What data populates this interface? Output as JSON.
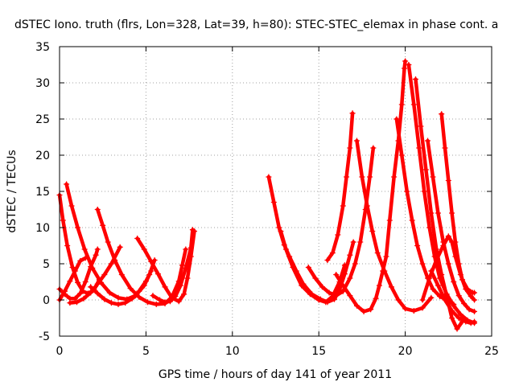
{
  "chart_data": {
    "type": "scatter",
    "title": "dSTEC Iono. truth (flrs, Lon=328, Lat=39, h=80): STEC-STEC_elemax in phase cont. a",
    "xlabel": "GPS time / hours of day 141 of year 2011",
    "ylabel": "dSTEC  / TECUs",
    "xlim": [
      0,
      25
    ],
    "ylim": [
      -5,
      35
    ],
    "xticks": [
      0,
      5,
      10,
      15,
      20,
      25
    ],
    "yticks": [
      -5,
      0,
      5,
      10,
      15,
      20,
      25,
      30,
      35
    ],
    "grid": true,
    "legend": "none",
    "marker": "plus",
    "color": "#ff0000",
    "series": [
      {
        "points": [
          [
            0.0,
            14.5
          ],
          [
            0.2,
            11.0
          ],
          [
            0.45,
            7.5
          ],
          [
            0.75,
            4.5
          ],
          [
            1.05,
            2.4
          ],
          [
            1.35,
            1.2
          ],
          [
            1.65,
            0.9
          ],
          [
            2.0,
            1.4
          ],
          [
            2.3,
            2.8
          ]
        ]
      },
      {
        "points": [
          [
            0.0,
            1.5
          ],
          [
            0.3,
            0.8
          ],
          [
            0.6,
            0.2
          ],
          [
            0.9,
            0.2
          ],
          [
            1.2,
            0.9
          ],
          [
            1.5,
            2.5
          ],
          [
            1.8,
            4.6
          ],
          [
            2.1,
            6.2
          ],
          [
            2.2,
            7.0
          ]
        ]
      },
      {
        "points": [
          [
            0.0,
            0.0
          ],
          [
            0.3,
            1.2
          ],
          [
            0.6,
            2.6
          ],
          [
            0.9,
            4.0
          ],
          [
            1.2,
            5.4
          ],
          [
            1.5,
            5.8
          ]
        ]
      },
      {
        "points": [
          [
            0.4,
            16.0
          ],
          [
            0.7,
            13.0
          ],
          [
            1.05,
            10.0
          ],
          [
            1.45,
            7.0
          ],
          [
            1.9,
            4.4
          ],
          [
            2.4,
            2.4
          ],
          [
            2.9,
            1.0
          ],
          [
            3.4,
            0.3
          ],
          [
            3.9,
            0.1
          ],
          [
            4.4,
            0.6
          ],
          [
            4.9,
            2.0
          ],
          [
            5.2,
            3.5
          ],
          [
            5.5,
            5.5
          ]
        ]
      },
      {
        "points": [
          [
            0.6,
            -0.4
          ],
          [
            1.0,
            -0.3
          ],
          [
            1.4,
            0.2
          ],
          [
            1.8,
            1.0
          ],
          [
            2.2,
            2.2
          ],
          [
            2.6,
            3.5
          ],
          [
            3.0,
            5.0
          ],
          [
            3.5,
            7.3
          ]
        ]
      },
      {
        "points": [
          [
            2.2,
            12.5
          ],
          [
            2.5,
            10.3
          ],
          [
            2.8,
            8.0
          ],
          [
            3.2,
            5.5
          ],
          [
            3.6,
            3.5
          ],
          [
            4.1,
            1.6
          ],
          [
            4.6,
            0.4
          ],
          [
            5.1,
            -0.3
          ],
          [
            5.6,
            -0.6
          ],
          [
            6.1,
            -0.5
          ],
          [
            6.5,
            0.4
          ],
          [
            6.9,
            2.6
          ],
          [
            7.1,
            4.8
          ],
          [
            7.3,
            7.0
          ]
        ]
      },
      {
        "points": [
          [
            1.8,
            1.8
          ],
          [
            2.2,
            0.9
          ],
          [
            2.6,
            0.1
          ],
          [
            3.0,
            -0.4
          ],
          [
            3.4,
            -0.6
          ],
          [
            3.8,
            -0.4
          ],
          [
            4.2,
            0.2
          ],
          [
            4.6,
            1.2
          ],
          [
            5.0,
            2.6
          ],
          [
            5.3,
            4.0
          ]
        ]
      },
      {
        "points": [
          [
            4.5,
            8.5
          ],
          [
            4.9,
            7.0
          ],
          [
            5.3,
            5.3
          ],
          [
            5.7,
            3.6
          ],
          [
            6.1,
            1.8
          ],
          [
            6.5,
            0.3
          ],
          [
            6.9,
            -0.2
          ],
          [
            7.2,
            0.8
          ],
          [
            7.4,
            3.0
          ],
          [
            7.6,
            6.0
          ],
          [
            7.8,
            9.5
          ]
        ]
      },
      {
        "points": [
          [
            5.4,
            0.6
          ],
          [
            5.8,
            0.0
          ],
          [
            6.1,
            -0.3
          ],
          [
            6.4,
            -0.2
          ],
          [
            6.7,
            0.5
          ],
          [
            7.0,
            2.0
          ],
          [
            7.3,
            4.4
          ],
          [
            7.6,
            7.2
          ],
          [
            7.7,
            9.7
          ]
        ]
      },
      {
        "points": [
          [
            12.1,
            17.0
          ],
          [
            12.4,
            13.5
          ],
          [
            12.7,
            10.0
          ],
          [
            13.0,
            7.6
          ],
          [
            13.3,
            6.0
          ],
          [
            13.7,
            4.0
          ],
          [
            14.1,
            2.2
          ],
          [
            14.6,
            0.8
          ],
          [
            15.1,
            0.1
          ],
          [
            15.5,
            -0.3
          ],
          [
            15.9,
            0.1
          ],
          [
            16.2,
            1.4
          ],
          [
            16.5,
            3.6
          ],
          [
            16.8,
            6.2
          ],
          [
            17.0,
            8.0
          ]
        ]
      },
      {
        "points": [
          [
            12.8,
            9.5
          ],
          [
            13.1,
            7.0
          ],
          [
            13.5,
            4.5
          ],
          [
            14.0,
            2.0
          ],
          [
            14.5,
            0.8
          ],
          [
            15.0,
            0.0
          ],
          [
            15.4,
            -0.3
          ],
          [
            15.8,
            0.5
          ],
          [
            16.2,
            2.5
          ],
          [
            16.5,
            4.8
          ]
        ]
      },
      {
        "points": [
          [
            14.4,
            4.5
          ],
          [
            14.8,
            3.0
          ],
          [
            15.2,
            1.8
          ],
          [
            15.6,
            1.0
          ],
          [
            16.0,
            0.6
          ],
          [
            16.4,
            1.2
          ],
          [
            16.8,
            3.0
          ],
          [
            17.1,
            5.0
          ],
          [
            17.4,
            8.0
          ],
          [
            17.7,
            12.5
          ],
          [
            17.95,
            17.0
          ],
          [
            18.15,
            21.0
          ]
        ]
      },
      {
        "points": [
          [
            15.5,
            5.5
          ],
          [
            15.8,
            6.5
          ],
          [
            16.1,
            9.0
          ],
          [
            16.4,
            13.0
          ],
          [
            16.6,
            17.0
          ],
          [
            16.8,
            21.0
          ],
          [
            16.95,
            25.8
          ]
        ]
      },
      {
        "points": [
          [
            16.0,
            3.5
          ],
          [
            16.4,
            2.0
          ],
          [
            16.8,
            0.6
          ],
          [
            17.2,
            -0.8
          ],
          [
            17.6,
            -1.6
          ],
          [
            18.0,
            -1.3
          ],
          [
            18.3,
            0.2
          ],
          [
            18.5,
            2.0
          ],
          [
            18.7,
            4.0
          ],
          [
            18.9,
            6.0
          ],
          [
            19.1,
            11.0
          ],
          [
            19.35,
            17.0
          ],
          [
            19.6,
            22.0
          ],
          [
            19.8,
            27.0
          ],
          [
            19.95,
            32.0
          ],
          [
            20.0,
            33.0
          ]
        ]
      },
      {
        "points": [
          [
            17.2,
            22.0
          ],
          [
            17.5,
            17.0
          ],
          [
            17.8,
            13.0
          ],
          [
            18.1,
            9.5
          ],
          [
            18.4,
            6.5
          ],
          [
            18.8,
            4.0
          ],
          [
            19.2,
            1.8
          ],
          [
            19.6,
            0.0
          ],
          [
            20.0,
            -1.2
          ],
          [
            20.5,
            -1.5
          ],
          [
            21.0,
            -1.1
          ],
          [
            21.5,
            0.3
          ]
        ]
      },
      {
        "points": [
          [
            19.5,
            25.0
          ],
          [
            19.8,
            20.0
          ],
          [
            20.1,
            15.0
          ],
          [
            20.4,
            11.0
          ],
          [
            20.7,
            7.5
          ],
          [
            21.0,
            5.0
          ],
          [
            21.3,
            3.0
          ],
          [
            21.6,
            1.5
          ],
          [
            22.0,
            0.5
          ],
          [
            22.4,
            0.0
          ],
          [
            22.8,
            -0.6
          ]
        ]
      },
      {
        "points": [
          [
            20.2,
            32.5
          ],
          [
            20.5,
            27.0
          ],
          [
            20.8,
            21.0
          ],
          [
            21.1,
            15.0
          ],
          [
            21.4,
            10.0
          ],
          [
            21.7,
            6.0
          ],
          [
            22.0,
            3.0
          ],
          [
            22.4,
            0.8
          ],
          [
            22.8,
            -0.8
          ],
          [
            23.2,
            -2.0
          ],
          [
            23.6,
            -2.8
          ],
          [
            24.0,
            -3.2
          ]
        ]
      },
      {
        "points": [
          [
            20.6,
            30.5
          ],
          [
            20.9,
            24.0
          ],
          [
            21.2,
            18.0
          ],
          [
            21.5,
            12.0
          ],
          [
            21.8,
            7.0
          ],
          [
            22.1,
            3.5
          ],
          [
            22.4,
            0.5
          ],
          [
            22.7,
            -2.5
          ],
          [
            23.0,
            -4.0
          ],
          [
            23.3,
            -3.0
          ]
        ]
      },
      {
        "points": [
          [
            21.0,
            0.0
          ],
          [
            21.4,
            3.0
          ],
          [
            21.8,
            5.5
          ],
          [
            22.2,
            7.5
          ],
          [
            22.5,
            8.8
          ],
          [
            22.7,
            8.0
          ],
          [
            22.9,
            6.0
          ],
          [
            23.2,
            3.5
          ],
          [
            23.5,
            1.5
          ],
          [
            23.8,
            0.5
          ],
          [
            24.0,
            0.0
          ]
        ]
      },
      {
        "points": [
          [
            21.3,
            22.0
          ],
          [
            21.6,
            17.0
          ],
          [
            21.9,
            12.0
          ],
          [
            22.2,
            8.0
          ],
          [
            22.5,
            5.0
          ],
          [
            22.8,
            2.5
          ],
          [
            23.1,
            0.6
          ],
          [
            23.4,
            -0.5
          ],
          [
            23.7,
            -1.3
          ],
          [
            24.0,
            -1.6
          ]
        ]
      },
      {
        "points": [
          [
            22.1,
            25.7
          ],
          [
            22.3,
            21.0
          ],
          [
            22.5,
            16.5
          ],
          [
            22.7,
            12.0
          ],
          [
            22.9,
            8.0
          ],
          [
            23.1,
            5.0
          ],
          [
            23.3,
            2.8
          ],
          [
            23.6,
            1.5
          ],
          [
            23.9,
            1.0
          ],
          [
            24.0,
            1.0
          ]
        ]
      },
      {
        "points": [
          [
            21.5,
            4.0
          ],
          [
            21.9,
            2.0
          ],
          [
            22.3,
            0.0
          ],
          [
            22.7,
            -1.5
          ],
          [
            23.1,
            -2.5
          ],
          [
            23.5,
            -3.0
          ],
          [
            23.8,
            -3.2
          ],
          [
            24.0,
            -3.0
          ]
        ]
      }
    ]
  }
}
